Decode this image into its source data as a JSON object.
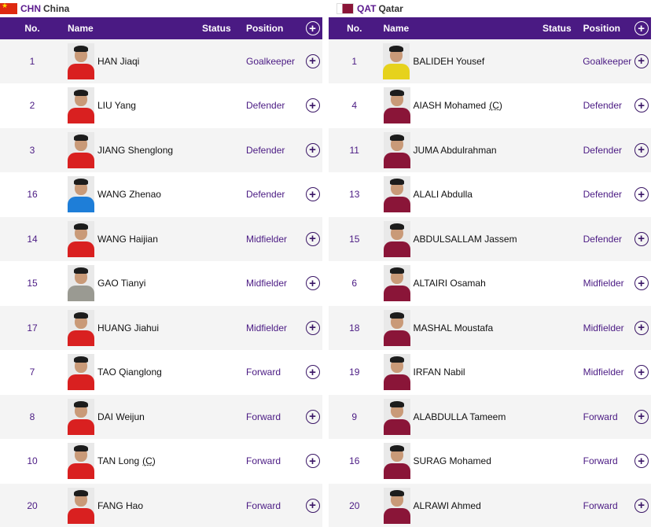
{
  "columns": {
    "no": "No.",
    "name": "Name",
    "status": "Status",
    "position": "Position"
  },
  "teams": [
    {
      "code": "CHN",
      "name": "China",
      "players": [
        {
          "no": "1",
          "name": "HAN Jiaqi",
          "captain": "",
          "position": "Goalkeeper",
          "shirt": "red"
        },
        {
          "no": "2",
          "name": "LIU Yang",
          "captain": "",
          "position": "Defender",
          "shirt": "red"
        },
        {
          "no": "3",
          "name": "JIANG Shenglong",
          "captain": "",
          "position": "Defender",
          "shirt": "red"
        },
        {
          "no": "16",
          "name": "WANG Zhenao",
          "captain": "",
          "position": "Defender",
          "shirt": "blue"
        },
        {
          "no": "14",
          "name": "WANG Haijian",
          "captain": "",
          "position": "Midfielder",
          "shirt": "red"
        },
        {
          "no": "15",
          "name": "GAO Tianyi",
          "captain": "",
          "position": "Midfielder",
          "shirt": "grey"
        },
        {
          "no": "17",
          "name": "HUANG Jiahui",
          "captain": "",
          "position": "Midfielder",
          "shirt": "red"
        },
        {
          "no": "7",
          "name": "TAO Qianglong",
          "captain": "",
          "position": "Forward",
          "shirt": "red"
        },
        {
          "no": "8",
          "name": "DAI Weijun",
          "captain": "",
          "position": "Forward",
          "shirt": "red"
        },
        {
          "no": "10",
          "name": "TAN Long",
          "captain": "(C)",
          "position": "Forward",
          "shirt": "red"
        },
        {
          "no": "20",
          "name": "FANG Hao",
          "captain": "",
          "position": "Forward",
          "shirt": "red"
        }
      ]
    },
    {
      "code": "QAT",
      "name": "Qatar",
      "players": [
        {
          "no": "1",
          "name": "BALIDEH Yousef",
          "captain": "",
          "position": "Goalkeeper",
          "shirt": "yellow"
        },
        {
          "no": "4",
          "name": "AIASH Mohamed",
          "captain": "(C)",
          "position": "Defender",
          "shirt": "maroon"
        },
        {
          "no": "11",
          "name": "JUMA Abdulrahman",
          "captain": "",
          "position": "Defender",
          "shirt": "maroon"
        },
        {
          "no": "13",
          "name": "ALALI Abdulla",
          "captain": "",
          "position": "Defender",
          "shirt": "maroon"
        },
        {
          "no": "15",
          "name": "ABDULSALLAM Jassem",
          "captain": "",
          "position": "Defender",
          "shirt": "maroon"
        },
        {
          "no": "6",
          "name": "ALTAIRI Osamah",
          "captain": "",
          "position": "Midfielder",
          "shirt": "maroon"
        },
        {
          "no": "18",
          "name": "MASHAL Moustafa",
          "captain": "",
          "position": "Midfielder",
          "shirt": "maroon"
        },
        {
          "no": "19",
          "name": "IRFAN Nabil",
          "captain": "",
          "position": "Midfielder",
          "shirt": "maroon"
        },
        {
          "no": "9",
          "name": "ALABDULLA Tameem",
          "captain": "",
          "position": "Forward",
          "shirt": "maroon"
        },
        {
          "no": "16",
          "name": "SURAG Mohamed",
          "captain": "",
          "position": "Forward",
          "shirt": "maroon"
        },
        {
          "no": "20",
          "name": "ALRAWI Ahmed",
          "captain": "",
          "position": "Forward",
          "shirt": "maroon"
        }
      ]
    }
  ],
  "icons": {
    "add": "plus-circle-icon",
    "flag_chn": "china-flag-icon",
    "flag_qat": "qatar-flag-icon"
  },
  "colors": {
    "header_bg": "#4a1a83",
    "accent": "#4a1a83",
    "row_alt": "#f4f4f4"
  }
}
